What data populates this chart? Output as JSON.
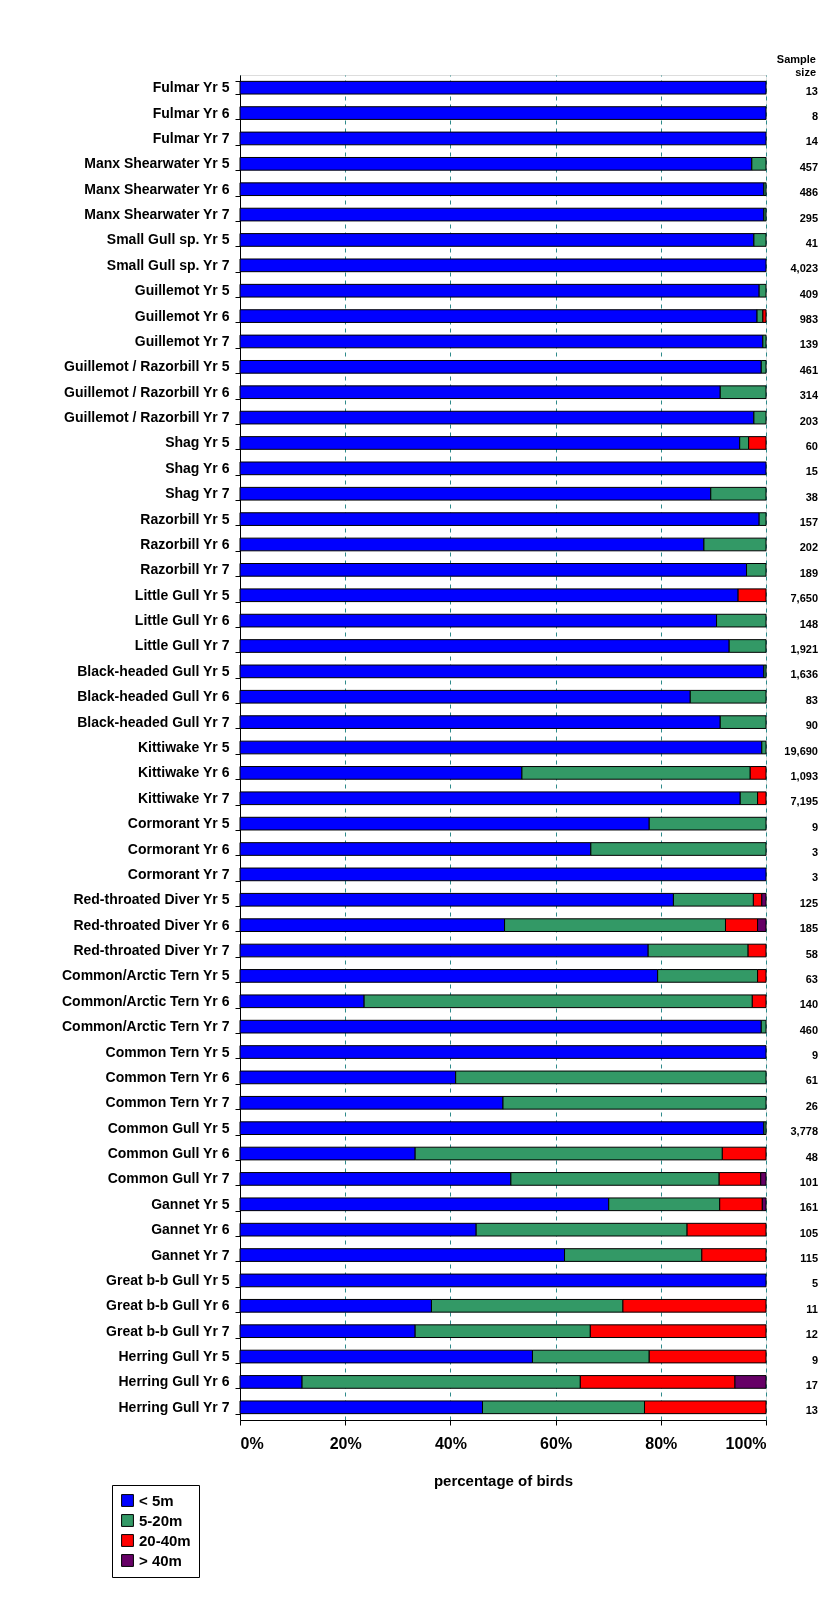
{
  "chart_data": {
    "type": "bar",
    "orientation": "horizontal",
    "stacked": true,
    "xlabel": "percentage of birds",
    "categories": [
      "Fulmar Yr 5",
      "Fulmar Yr 6",
      "Fulmar Yr 7",
      "Manx Shearwater Yr 5",
      "Manx Shearwater Yr 6",
      "Manx Shearwater Yr 7",
      "Small Gull sp. Yr 5",
      "Small Gull sp. Yr 7",
      "Guillemot Yr 5",
      "Guillemot Yr 6",
      "Guillemot Yr 7",
      "Guillemot / Razorbill Yr 5",
      "Guillemot / Razorbill Yr 6",
      "Guillemot / Razorbill Yr 7",
      "Shag Yr 5",
      "Shag Yr 6",
      "Shag Yr 7",
      "Razorbill Yr 5",
      "Razorbill Yr 6",
      "Razorbill Yr 7",
      "Little Gull Yr 5",
      "Little Gull Yr 6",
      "Little Gull Yr 7",
      "Black-headed Gull Yr 5",
      "Black-headed Gull Yr 6",
      "Black-headed Gull Yr 7",
      "Kittiwake Yr 5",
      "Kittiwake Yr 6",
      "Kittiwake Yr 7",
      "Cormorant Yr 5",
      "Cormorant Yr 6",
      "Cormorant Yr 7",
      "Red-throated Diver Yr 5",
      "Red-throated Diver Yr 6",
      "Red-throated Diver Yr 7",
      "Common/Arctic Tern Yr 5",
      "Common/Arctic Tern Yr 6",
      "Common/Arctic Tern Yr 7",
      "Common Tern Yr 5",
      "Common Tern Yr 6",
      "Common Tern Yr 7",
      "Common Gull Yr 5",
      "Common Gull Yr 6",
      "Common Gull Yr 7",
      "Gannet Yr 5",
      "Gannet Yr 6",
      "Gannet Yr 7",
      "Great b-b Gull Yr 5",
      "Great b-b Gull Yr 6",
      "Great b-b Gull Yr 7",
      "Herring Gull Yr 5",
      "Herring Gull Yr 6",
      "Herring Gull Yr 7"
    ],
    "series": [
      {
        "name": "< 5m",
        "color": "#0000ff",
        "values": [
          100,
          100,
          100,
          97.3,
          99.6,
          99.6,
          97.7,
          100,
          98.7,
          98.3,
          99.4,
          99.1,
          91.3,
          97.7,
          95.0,
          100,
          89.5,
          98.7,
          88.2,
          96.3,
          94.7,
          90.6,
          93.0,
          99.6,
          85.6,
          91.3,
          99.2,
          53.6,
          95.1,
          77.8,
          66.7,
          100,
          82.4,
          50.3,
          77.6,
          79.4,
          23.6,
          99.1,
          100,
          41.0,
          50.0,
          99.6,
          33.3,
          51.5,
          70.1,
          44.9,
          61.7,
          100,
          36.4,
          33.3,
          55.6,
          11.8,
          46.1
        ]
      },
      {
        "name": "5-20m",
        "color": "#339966",
        "values": [
          0,
          0,
          0,
          2.7,
          0.4,
          0.4,
          2.3,
          0,
          1.3,
          1.1,
          0.6,
          0.9,
          8.7,
          2.3,
          1.7,
          0,
          10.5,
          1.3,
          11.8,
          3.7,
          0,
          9.4,
          7.0,
          0.4,
          14.4,
          8.7,
          0.8,
          43.4,
          3.3,
          22.2,
          33.3,
          0,
          15.2,
          42.0,
          19.0,
          19.0,
          73.8,
          0.9,
          0,
          59.0,
          50.0,
          0.4,
          58.4,
          39.6,
          21.1,
          40.1,
          26.1,
          0,
          36.4,
          33.3,
          22.2,
          52.9,
          30.8
        ]
      },
      {
        "name": "20-40m",
        "color": "#ff0000",
        "values": [
          0,
          0,
          0,
          0,
          0,
          0,
          0,
          0,
          0,
          0.6,
          0,
          0,
          0,
          0,
          3.3,
          0,
          0,
          0,
          0,
          0,
          5.3,
          0,
          0,
          0,
          0,
          0,
          0,
          3.0,
          1.6,
          0,
          0,
          0,
          1.6,
          6.1,
          3.4,
          1.6,
          2.6,
          0,
          0,
          0,
          0,
          0,
          8.3,
          7.9,
          8.1,
          15.0,
          12.2,
          0,
          27.2,
          33.4,
          22.2,
          29.4,
          23.1
        ]
      },
      {
        "name": "> 40m",
        "color": "#660066",
        "values": [
          0,
          0,
          0,
          0,
          0,
          0,
          0,
          0,
          0,
          0,
          0,
          0,
          0,
          0,
          0,
          0,
          0,
          0,
          0,
          0,
          0,
          0,
          0,
          0,
          0,
          0,
          0,
          0,
          0,
          0,
          0,
          0,
          0.8,
          1.6,
          0,
          0,
          0,
          0,
          0,
          0,
          0,
          0,
          0,
          1.0,
          0.7,
          0,
          0,
          0,
          0,
          0,
          0,
          5.9,
          0
        ]
      }
    ],
    "xlim": [
      0,
      100
    ],
    "xticks": [
      {
        "value": 0,
        "label": "0%"
      },
      {
        "value": 20,
        "label": "20%"
      },
      {
        "value": 40,
        "label": "40%"
      },
      {
        "value": 60,
        "label": "60%"
      },
      {
        "value": 80,
        "label": "80%"
      },
      {
        "value": 100,
        "label": "100%"
      }
    ],
    "grid": "x",
    "legend": "bottom left",
    "annotations": [
      "Sample size",
      "13",
      "8",
      "14",
      "457",
      "486",
      "295",
      "41",
      "4,023",
      "409",
      "983",
      "139",
      "461",
      "314",
      "203",
      "60",
      "15",
      "38",
      "157",
      "202",
      "189",
      "7,650",
      "148",
      "1,921",
      "1,636",
      "83",
      "90",
      "19,690",
      "1,093",
      "7,195",
      "9",
      "3",
      "3",
      "125",
      "185",
      "58",
      "63",
      "140",
      "460",
      "9",
      "61",
      "26",
      "3,778",
      "48",
      "101",
      "161",
      "105",
      "115",
      "5",
      "11",
      "12",
      "9",
      "17",
      "13"
    ]
  }
}
